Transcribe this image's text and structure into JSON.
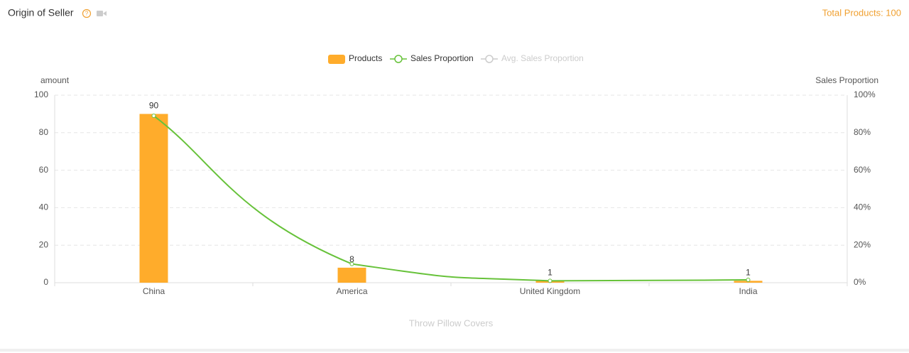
{
  "header": {
    "title": "Origin of Seller",
    "total": "Total Products: 100"
  },
  "chart_data": {
    "type": "bar",
    "categories": [
      "China",
      "America",
      "United Kingdom",
      "India"
    ],
    "series": [
      {
        "name": "Products",
        "color": "#ffac2b",
        "values": [
          90,
          8,
          1,
          1
        ],
        "type": "bar",
        "axis": "y"
      },
      {
        "name": "Sales Proportion",
        "color": "#67c23a",
        "values": [
          89,
          10,
          1,
          1.5
        ],
        "type": "line",
        "axis": "y2"
      }
    ],
    "inactive_series": [
      {
        "name": "Avg. Sales Proportion",
        "color": "#cccccc"
      }
    ],
    "ylabel": "amount",
    "y2label": "Sales Proportion",
    "xlabel": "Throw Pillow Covers",
    "ylim": [
      0,
      100
    ],
    "yticks": [
      0,
      20,
      40,
      60,
      80,
      100
    ],
    "y2lim": [
      0,
      100
    ],
    "y2ticks": [
      {
        "value": 0,
        "label": "0%"
      },
      {
        "value": 20,
        "label": "20%"
      },
      {
        "value": 40,
        "label": "40%"
      },
      {
        "value": 60,
        "label": "60%"
      },
      {
        "value": 80,
        "label": "80%"
      },
      {
        "value": 100,
        "label": "100%"
      }
    ],
    "grid": true
  }
}
